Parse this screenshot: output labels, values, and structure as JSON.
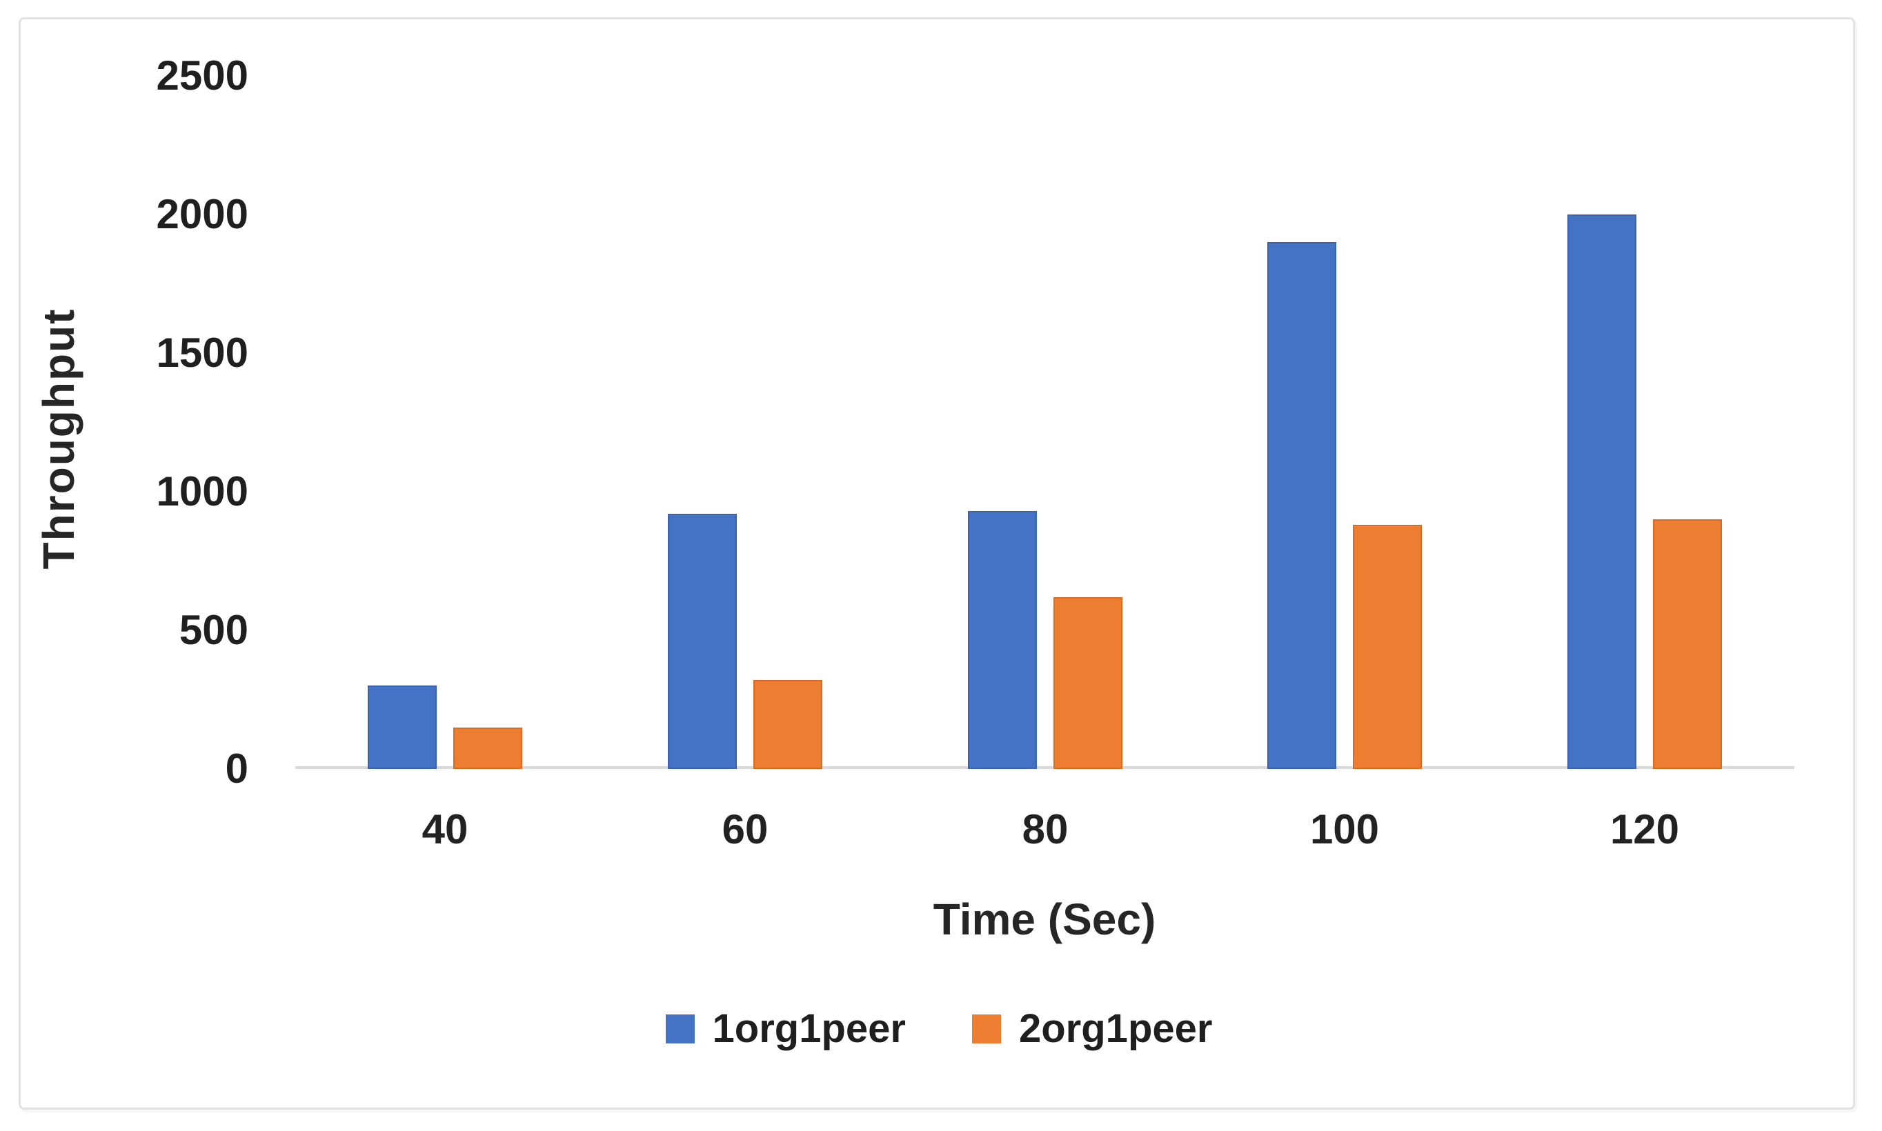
{
  "chart_data": {
    "type": "bar",
    "title": "",
    "categories": [
      "40",
      "60",
      "80",
      "100",
      "120"
    ],
    "series": [
      {
        "name": "1org1peer",
        "color": "#4472C4",
        "edge_color": "#3a63ad",
        "values": [
          300,
          920,
          930,
          1900,
          2000
        ]
      },
      {
        "name": "2org1peer",
        "color": "#ED7D31",
        "edge_color": "#d96c20",
        "values": [
          150,
          320,
          620,
          880,
          900
        ]
      }
    ],
    "xlabel": "Time (Sec)",
    "ylabel": "Throughput",
    "ylim": [
      0,
      2500
    ],
    "yticks": [
      0,
      500,
      1000,
      1500,
      2000,
      2500
    ],
    "grid": false,
    "legend_position": "bottom",
    "axis_line_color": "#d9d9d9",
    "text_color": "#1f1f1f",
    "background_color": "#ffffff",
    "card_border_color": "#e2e2e2"
  }
}
